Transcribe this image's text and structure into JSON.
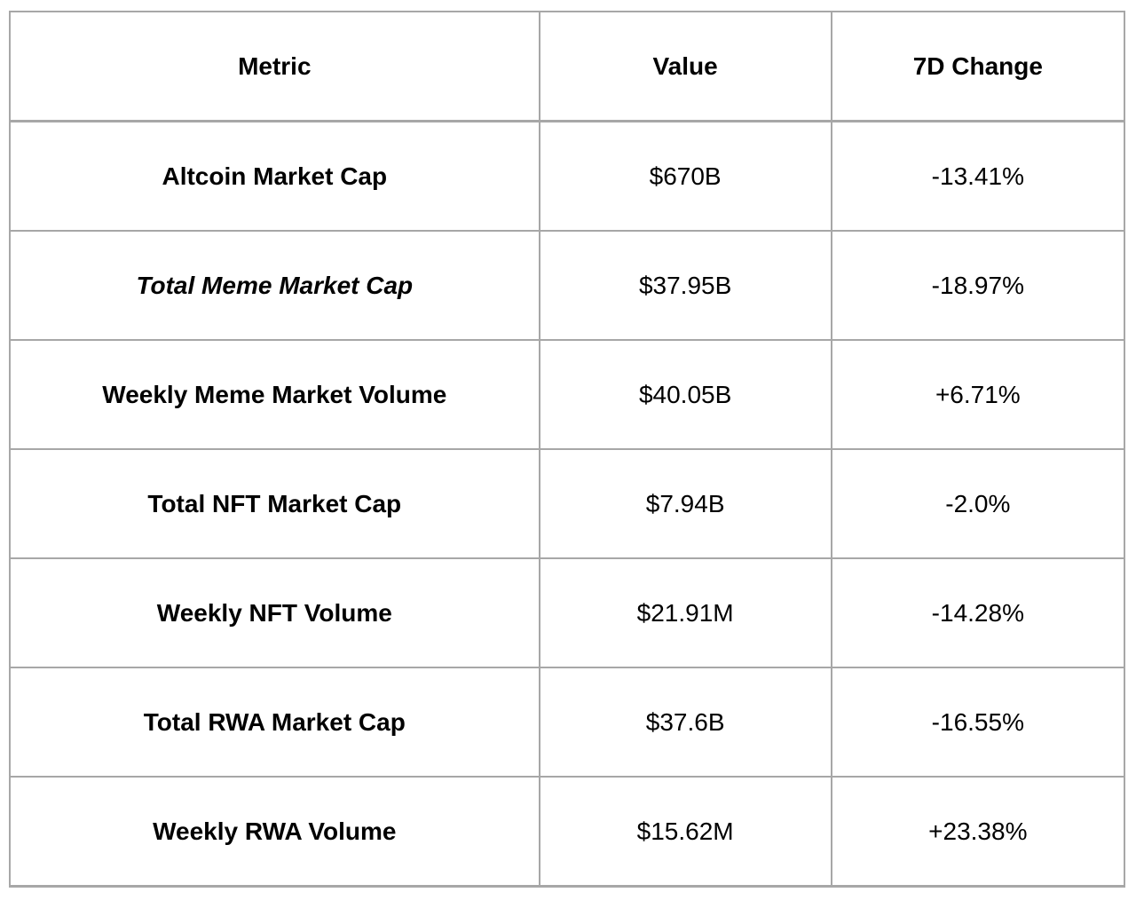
{
  "table": {
    "headers": [
      "Metric",
      "Value",
      "7D Change"
    ],
    "rows": [
      {
        "metric": "Altcoin Market Cap",
        "value": "$670B",
        "change": "-13.41%",
        "italic": false
      },
      {
        "metric": "Total Meme Market Cap",
        "value": "$37.95B",
        "change": "-18.97%",
        "italic": true
      },
      {
        "metric": "Weekly Meme Market Volume",
        "value": "$40.05B",
        "change": "+6.71%",
        "italic": false
      },
      {
        "metric": "Total NFT Market Cap",
        "value": "$7.94B",
        "change": "-2.0%",
        "italic": false
      },
      {
        "metric": "Weekly NFT Volume",
        "value": "$21.91M",
        "change": "-14.28%",
        "italic": false
      },
      {
        "metric": "Total RWA Market Cap",
        "value": "$37.6B",
        "change": "-16.55%",
        "italic": false
      },
      {
        "metric": "Weekly RWA Volume",
        "value": "$15.62M",
        "change": "+23.38%",
        "italic": false
      }
    ]
  },
  "chart_data": {
    "type": "table",
    "title": "",
    "columns": [
      "Metric",
      "Value",
      "7D Change"
    ],
    "rows": [
      [
        "Altcoin Market Cap",
        "$670B",
        "-13.41%"
      ],
      [
        "Total Meme Market Cap",
        "$37.95B",
        "-18.97%"
      ],
      [
        "Weekly Meme Market Volume",
        "$40.05B",
        "+6.71%"
      ],
      [
        "Total NFT Market Cap",
        "$7.94B",
        "-2.0%"
      ],
      [
        "Weekly NFT Volume",
        "$21.91M",
        "-14.28%"
      ],
      [
        "Total RWA Market Cap",
        "$37.6B",
        "-16.55%"
      ],
      [
        "Weekly RWA Volume",
        "$15.62M",
        "+23.38%"
      ]
    ],
    "numeric_values": {
      "altcoin_market_cap_usd_b": 670,
      "total_meme_market_cap_usd_b": 37.95,
      "weekly_meme_market_volume_usd_b": 40.05,
      "total_nft_market_cap_usd_b": 7.94,
      "weekly_nft_volume_usd_m": 21.91,
      "total_rwa_market_cap_usd_b": 37.6,
      "weekly_rwa_volume_usd_m": 15.62,
      "changes_7d_pct": [
        -13.41,
        -18.97,
        6.71,
        -2.0,
        -14.28,
        -16.55,
        23.38
      ]
    }
  },
  "colors": {
    "border": "#a7a7a7",
    "text": "#000000",
    "background": "#ffffff"
  }
}
